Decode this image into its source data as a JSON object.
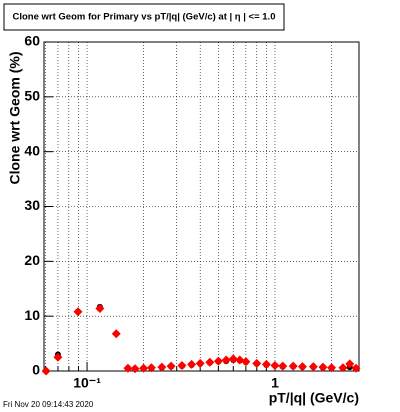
{
  "chart_data": {
    "type": "scatter",
    "title": "Clone wrt Geom for Primary vs pT/|q| (GeV/c) at |  η | <= 1.0",
    "x_label": "pT/|q| (GeV/c)",
    "y_label": "Clone wrt Geom (%)",
    "footer": "Fri Nov 20 09:14:43 2020",
    "x": [
      0.0605,
      0.07,
      0.0895,
      0.117,
      0.143,
      0.165,
      0.18,
      0.2,
      0.22,
      0.25,
      0.28,
      0.32,
      0.36,
      0.4,
      0.45,
      0.5,
      0.55,
      0.6,
      0.65,
      0.7,
      0.8,
      0.9,
      1.0,
      1.1,
      1.25,
      1.4,
      1.6,
      1.8,
      2.0,
      2.3,
      2.5,
      2.7
    ],
    "series": [
      {
        "color": "#000000",
        "marker": "circle",
        "values": [
          0,
          3.0,
          10.8,
          11.7,
          6.8,
          0.4,
          0.4,
          0.5,
          0.5,
          0.6,
          0.8,
          0.9,
          1.1,
          1.3,
          1.5,
          1.7,
          1.8,
          2.0,
          1.9,
          1.6,
          1.3,
          1.1,
          1.0,
          0.8,
          0.8,
          0.7,
          0.7,
          0.6,
          0.5,
          0.5,
          0.7,
          0.4
        ]
      },
      {
        "color": "#ff0000",
        "marker": "diamond",
        "values": [
          0,
          2.5,
          10.8,
          11.4,
          6.8,
          0.5,
          0.4,
          0.5,
          0.6,
          0.7,
          0.9,
          1.0,
          1.2,
          1.4,
          1.6,
          1.8,
          2.0,
          2.2,
          2.0,
          1.7,
          1.4,
          1.2,
          1.0,
          0.9,
          0.9,
          0.8,
          0.8,
          0.7,
          0.6,
          0.6,
          1.3,
          0.5
        ]
      }
    ],
    "x_log": true,
    "xlim": [
      0.059,
      2.8
    ],
    "ylim": [
      0,
      60
    ],
    "xticks": [
      {
        "value": 0.1,
        "label": "10⁻¹"
      },
      1
    ],
    "xminorticks": [
      0.06,
      0.07,
      0.08,
      0.09,
      0.2,
      0.3,
      0.4,
      0.5,
      0.6,
      0.7,
      0.8,
      0.9,
      2
    ],
    "yticks": [
      0,
      10,
      20,
      30,
      40,
      50,
      60
    ],
    "grid": true
  }
}
